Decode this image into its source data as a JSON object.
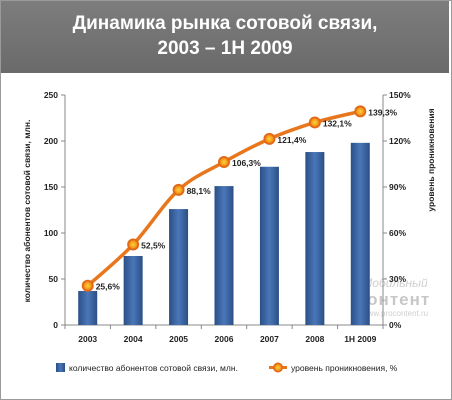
{
  "header": {
    "title_line1": "Динамика рынка сотовой связи,",
    "title_line2": "2003 – 1H 2009"
  },
  "watermark": {
    "line1": "Мобильный",
    "line2": "Контент",
    "line3": "www.procontent.ru"
  },
  "chart_data": {
    "type": "bar",
    "categories": [
      "2003",
      "2004",
      "2005",
      "2006",
      "2007",
      "2008",
      "1H 2009"
    ],
    "series": [
      {
        "name": "количество абонентов сотовой связи, млн.",
        "type": "bar",
        "axis": "left",
        "color": "#3a62a0",
        "values": [
          37,
          75,
          126,
          151,
          172,
          188,
          198
        ]
      },
      {
        "name": "уровень проникновения, %",
        "type": "line",
        "axis": "right",
        "color": "#e8761d",
        "values": [
          25.6,
          52.5,
          88.1,
          106.3,
          121.4,
          132.1,
          139.3
        ],
        "labels": [
          "25,6%",
          "52,5%",
          "88,1%",
          "106,3%",
          "121,4%",
          "132,1%",
          "139,3%"
        ]
      }
    ],
    "ylabel": "количество абонентов сотовой связи, млн.",
    "ylabel_right": "уровень проникновения",
    "ylim": [
      0,
      250
    ],
    "y_ticks": [
      "0",
      "50",
      "100",
      "150",
      "200",
      "250"
    ],
    "ylim_right": [
      0,
      150
    ],
    "y_ticks_right": [
      "0%",
      "30%",
      "60%",
      "90%",
      "120%",
      "150%"
    ],
    "legend_position": "bottom",
    "grid": false
  }
}
